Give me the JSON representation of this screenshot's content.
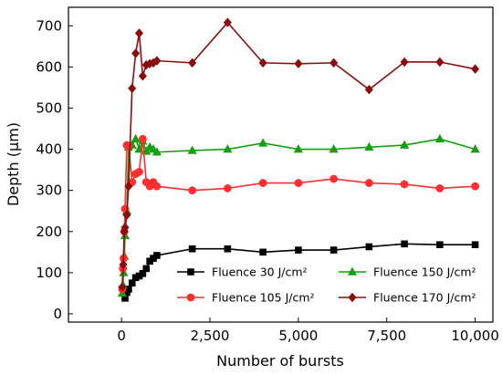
{
  "chart_data": {
    "type": "line",
    "xlabel": "Number of bursts",
    "ylabel": "Depth (µm)",
    "xlim": [
      -1500,
      10500
    ],
    "ylim": [
      -20,
      745
    ],
    "x_ticks": [
      0,
      2500,
      5000,
      7500,
      10000
    ],
    "x_tick_labels": [
      "0",
      "2,500",
      "5,000",
      "7,500",
      "10,000"
    ],
    "y_ticks": [
      0,
      100,
      200,
      300,
      400,
      500,
      600,
      700
    ],
    "y_tick_labels": [
      "0",
      "100",
      "200",
      "300",
      "400",
      "500",
      "600",
      "700"
    ],
    "grid": false,
    "legend_position": "bottom-right",
    "series": [
      {
        "name": "Fluence 30 J/cm²",
        "color": "#000000",
        "marker": "square",
        "x": [
          100,
          150,
          200,
          300,
          400,
          500,
          600,
          700,
          800,
          900,
          1000,
          2000,
          3000,
          4000,
          5000,
          6000,
          7000,
          8000,
          9000,
          10000
        ],
        "y": [
          38,
          52,
          60,
          75,
          88,
          92,
          98,
          110,
          128,
          135,
          142,
          158,
          158,
          150,
          155,
          155,
          163,
          170,
          168,
          168
        ]
      },
      {
        "name": "Fluence 150 J/cm²",
        "color": "#13a013",
        "marker": "triangle",
        "x": [
          20,
          40,
          60,
          80,
          100,
          150,
          200,
          300,
          400,
          500,
          600,
          700,
          800,
          900,
          1000,
          2000,
          3000,
          4000,
          5000,
          6000,
          7000,
          8000,
          9000,
          10000
        ],
        "y": [
          50,
          70,
          100,
          140,
          190,
          250,
          405,
          410,
          425,
          400,
          420,
          395,
          405,
          400,
          393,
          397,
          400,
          415,
          400,
          400,
          405,
          410,
          425,
          400
        ]
      },
      {
        "name": "Fluence 105 J/cm²",
        "color": "#ff2f2f",
        "marker": "circle",
        "x": [
          20,
          40,
          60,
          80,
          100,
          150,
          200,
          300,
          400,
          500,
          600,
          700,
          800,
          900,
          1000,
          2000,
          3000,
          4000,
          5000,
          6000,
          7000,
          8000,
          9000,
          10000
        ],
        "y": [
          60,
          110,
          135,
          200,
          255,
          410,
          408,
          320,
          340,
          345,
          425,
          320,
          310,
          320,
          310,
          300,
          305,
          318,
          318,
          328,
          318,
          315,
          305,
          310
        ]
      },
      {
        "name": "Fluence 170 J/cm²",
        "color": "#8b0d0d",
        "marker": "diamond",
        "x": [
          20,
          50,
          80,
          100,
          150,
          200,
          300,
          400,
          500,
          600,
          700,
          800,
          900,
          1000,
          2000,
          3000,
          4000,
          5000,
          6000,
          7000,
          8000,
          9000,
          10000
        ],
        "y": [
          65,
          120,
          200,
          210,
          240,
          310,
          548,
          633,
          682,
          578,
          605,
          608,
          610,
          615,
          610,
          708,
          610,
          608,
          610,
          545,
          612,
          612,
          595
        ]
      }
    ]
  }
}
